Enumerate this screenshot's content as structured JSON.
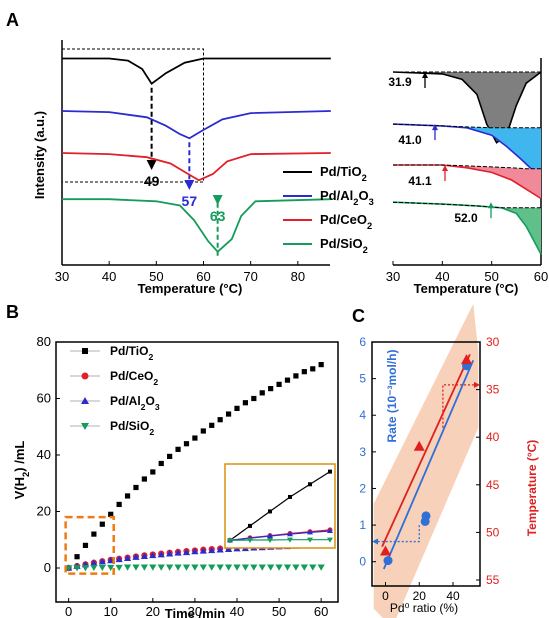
{
  "colors": {
    "tio2": "#000000",
    "al2o3": "#2b2bd0",
    "ceo2": "#e0202a",
    "sio2": "#159c5a",
    "inset_box": "#d9900f",
    "zoom_box": "#f07a12",
    "c_band": "#f6c9ad",
    "c_rate": "#2f6fd8",
    "c_temp": "#e02020"
  },
  "panels": {
    "a": "A",
    "b": "B",
    "c": "C"
  },
  "chart_data": [
    {
      "id": "A-left",
      "type": "line",
      "xlabel": "Temperature (°C)",
      "ylabel": "Intensity (a.u.)",
      "xlim": [
        30,
        90
      ],
      "xticks": [
        "30",
        "40",
        "50",
        "60",
        "70",
        "80"
      ],
      "series": [
        {
          "name": "Pd/TiO2",
          "color_key": "tio2",
          "peak_x": 49,
          "peak_label": "49",
          "x": [
            30,
            40,
            44,
            47,
            49,
            52,
            56,
            60,
            70,
            87
          ],
          "y": [
            95,
            95,
            94,
            90,
            83,
            88,
            93,
            95,
            95,
            95
          ]
        },
        {
          "name": "Pd/Al2O3",
          "color_key": "al2o3",
          "peak_x": 57,
          "peak_label": "57",
          "x": [
            30,
            40,
            48,
            52,
            55,
            57,
            60,
            64,
            70,
            87
          ],
          "y": [
            70,
            69.5,
            67,
            63,
            59,
            57,
            61,
            66,
            69,
            70
          ]
        },
        {
          "name": "Pd/CeO2",
          "color_key": "ceo2",
          "peak_x": 59,
          "peak_label": "",
          "x": [
            30,
            40,
            48,
            53,
            56,
            59,
            62,
            65,
            70,
            87
          ],
          "y": [
            50,
            49.5,
            48,
            45,
            41,
            37,
            40,
            46,
            49.5,
            50
          ]
        },
        {
          "name": "Pd/SiO2",
          "color_key": "sio2",
          "peak_x": 63,
          "peak_label": "63",
          "x": [
            30,
            40,
            50,
            55,
            58,
            61,
            63,
            66,
            68,
            71,
            87
          ],
          "y": [
            28,
            28,
            27,
            25,
            18,
            8,
            3,
            9,
            20,
            27,
            28
          ]
        }
      ]
    },
    {
      "id": "A-right",
      "type": "area",
      "xlabel": "Temperature (°C)",
      "xlim": [
        30,
        60
      ],
      "xticks": [
        "30",
        "40",
        "50",
        "60"
      ],
      "series": [
        {
          "name": "Pd/TiO2",
          "color_key": "tio2",
          "label": "31.9",
          "x": [
            30,
            40,
            44,
            47,
            49,
            51,
            53,
            55,
            57,
            60
          ],
          "base": [
            100,
            100,
            100,
            100,
            100,
            100,
            100,
            100,
            100,
            100
          ],
          "y": [
            100,
            99,
            96,
            88,
            72,
            62,
            66,
            82,
            94,
            100
          ]
        },
        {
          "name": "Pd/Al2O3",
          "color_key": "al2o3",
          "label": "41.0",
          "x": [
            30,
            40,
            45,
            50,
            53,
            56,
            58,
            60
          ],
          "base": [
            72,
            71,
            70.5,
            70,
            70,
            70,
            70,
            70
          ],
          "y": [
            72,
            71,
            70,
            66,
            60,
            53,
            48,
            45
          ]
        },
        {
          "name": "Pd/CeO2",
          "color_key": "ceo2",
          "label": "41.1",
          "x": [
            30,
            40,
            45,
            50,
            54,
            57,
            60
          ],
          "base": [
            50,
            50,
            49.5,
            49,
            48.5,
            48,
            48
          ],
          "y": [
            50,
            50,
            48.5,
            46,
            42,
            37,
            32
          ]
        },
        {
          "name": "Pd/SiO2",
          "color_key": "sio2",
          "label": "52.0",
          "x": [
            30,
            40,
            47,
            52,
            55,
            57,
            59,
            60
          ],
          "base": [
            30,
            29,
            28,
            27,
            27,
            27,
            27,
            27
          ],
          "y": [
            30,
            29,
            28,
            27,
            24,
            17,
            7,
            2
          ]
        }
      ]
    },
    {
      "id": "B",
      "type": "scatter",
      "xlabel": "Time /min",
      "ylabel": "V(H2) /mL",
      "xlim": [
        0,
        60
      ],
      "ylim": [
        0,
        80
      ],
      "xticks": [
        "0",
        "10",
        "20",
        "30",
        "40",
        "50",
        "60"
      ],
      "yticks": [
        "0",
        "20",
        "40",
        "60",
        "80"
      ],
      "x": [
        0,
        2,
        4,
        6,
        8,
        10,
        12,
        14,
        16,
        18,
        20,
        22,
        24,
        26,
        28,
        30,
        32,
        34,
        36,
        38,
        40,
        42,
        44,
        46,
        48,
        50,
        52,
        54,
        56,
        58,
        60
      ],
      "series": [
        {
          "name": "Pd/TiO2",
          "color_key": "tio2",
          "marker": "square",
          "values": [
            0,
            4,
            8,
            12,
            15.5,
            19,
            22.5,
            25.5,
            28.5,
            31.5,
            34,
            37,
            39.5,
            42,
            44,
            46,
            48.5,
            50.5,
            52.5,
            54.5,
            56.5,
            58.5,
            60,
            62,
            63.5,
            65,
            66.5,
            68,
            69.5,
            70.5,
            72
          ]
        },
        {
          "name": "Pd/CeO2",
          "color_key": "ceo2",
          "marker": "circle",
          "values": [
            0,
            0.7,
            1.3,
            1.9,
            2.4,
            2.9,
            3.3,
            3.7,
            4.1,
            4.5,
            4.8,
            5.1,
            5.4,
            5.7,
            6,
            6.2,
            6.5,
            6.7,
            6.9,
            7.1,
            7.3,
            7.5,
            7.6,
            7.8,
            7.9,
            8.1,
            8.2,
            8.3,
            8.4,
            8.5,
            8.6
          ]
        },
        {
          "name": "Pd/Al2O3",
          "color_key": "al2o3",
          "marker": "triangle-up",
          "values": [
            0,
            0.6,
            1.2,
            1.7,
            2.2,
            2.6,
            3,
            3.4,
            3.8,
            4.1,
            4.4,
            4.7,
            5,
            5.3,
            5.5,
            5.8,
            6,
            6.2,
            6.4,
            6.6,
            6.8,
            6.9,
            7.1,
            7.2,
            7.4,
            7.5,
            7.6,
            7.8,
            7.9,
            8,
            8.1
          ]
        },
        {
          "name": "Pd/SiO2",
          "color_key": "sio2",
          "marker": "triangle-down",
          "values": [
            0,
            0.1,
            0.1,
            0.2,
            0.2,
            0.2,
            0.2,
            0.3,
            0.3,
            0.3,
            0.3,
            0.3,
            0.3,
            0.3,
            0.3,
            0.3,
            0.3,
            0.3,
            0.3,
            0.3,
            0.3,
            0.3,
            0.3,
            0.3,
            0.3,
            0.3,
            0.3,
            0.3,
            0.3,
            0.3,
            0.3
          ]
        }
      ],
      "zoom_box": {
        "x": [
          0,
          10
        ],
        "y": [
          -2,
          18
        ]
      }
    },
    {
      "id": "C",
      "type": "scatter",
      "xlabel": "Pd⁰ ratio (%)",
      "ylabel": "Rate (10⁻³mol/h)",
      "ylabel_right": "Temperature (°C)",
      "xlim": [
        -8,
        56
      ],
      "ylim": [
        -0.5,
        6
      ],
      "ylim_right": [
        55,
        30
      ],
      "xticks": [
        "0",
        "20",
        "40"
      ],
      "yticks": [
        "0",
        "1",
        "2",
        "3",
        "4",
        "5",
        "6"
      ],
      "yticks_right": [
        "30",
        "35",
        "40",
        "45",
        "50",
        "55"
      ],
      "rate_points": [
        {
          "x": 1.5,
          "y": 0.03
        },
        {
          "x": 23.5,
          "y": 1.1
        },
        {
          "x": 24,
          "y": 1.25
        },
        {
          "x": 48,
          "y": 5.35
        }
      ],
      "temp_points": [
        {
          "x": 0,
          "y": 52.0
        },
        {
          "x": 20,
          "y": 41.0
        },
        {
          "x": 48,
          "y": 31.9
        }
      ],
      "rate_fit": {
        "x": [
          -1,
          52
        ],
        "y": [
          -0.2,
          5.5
        ]
      },
      "temp_fit": {
        "x": [
          -2,
          50
        ],
        "y": [
          51.5,
          31.3
        ]
      }
    }
  ]
}
